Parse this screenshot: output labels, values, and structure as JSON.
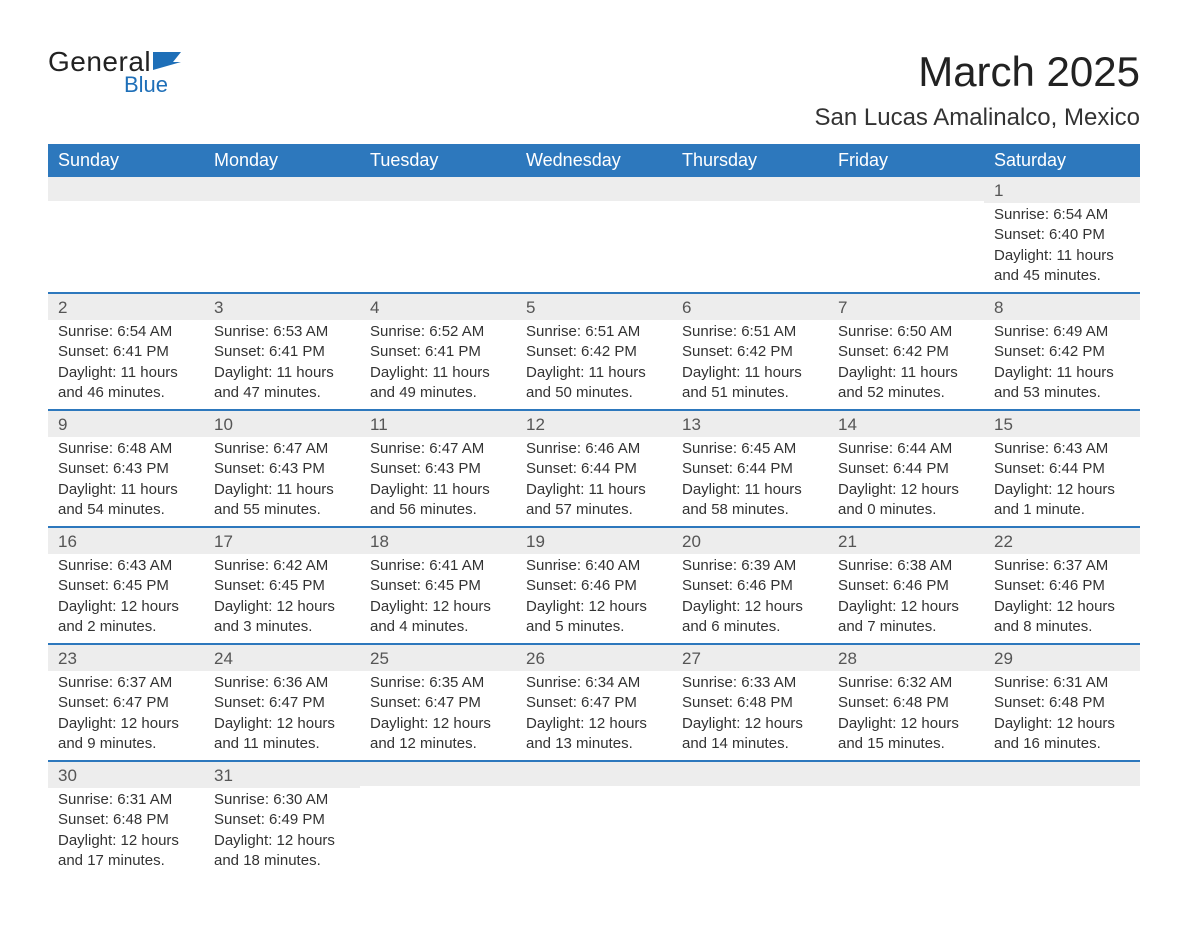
{
  "logo": {
    "general": "General",
    "blue": "Blue",
    "flag_color": "#1e6fb8"
  },
  "title": "March 2025",
  "location": "San Lucas Amalinalco, Mexico",
  "colors": {
    "header_bg": "#2d78bd",
    "header_text": "#ffffff",
    "row_divider": "#2d78bd",
    "daynum_bg": "#ededed",
    "text": "#333333"
  },
  "typography": {
    "title_fontsize": 42,
    "location_fontsize": 24,
    "dayheader_fontsize": 18,
    "daynum_fontsize": 17,
    "body_fontsize": 15
  },
  "day_headers": [
    "Sunday",
    "Monday",
    "Tuesday",
    "Wednesday",
    "Thursday",
    "Friday",
    "Saturday"
  ],
  "weeks": [
    [
      null,
      null,
      null,
      null,
      null,
      null,
      {
        "n": "1",
        "sunrise": "Sunrise: 6:54 AM",
        "sunset": "Sunset: 6:40 PM",
        "d1": "Daylight: 11 hours",
        "d2": "and 45 minutes."
      }
    ],
    [
      {
        "n": "2",
        "sunrise": "Sunrise: 6:54 AM",
        "sunset": "Sunset: 6:41 PM",
        "d1": "Daylight: 11 hours",
        "d2": "and 46 minutes."
      },
      {
        "n": "3",
        "sunrise": "Sunrise: 6:53 AM",
        "sunset": "Sunset: 6:41 PM",
        "d1": "Daylight: 11 hours",
        "d2": "and 47 minutes."
      },
      {
        "n": "4",
        "sunrise": "Sunrise: 6:52 AM",
        "sunset": "Sunset: 6:41 PM",
        "d1": "Daylight: 11 hours",
        "d2": "and 49 minutes."
      },
      {
        "n": "5",
        "sunrise": "Sunrise: 6:51 AM",
        "sunset": "Sunset: 6:42 PM",
        "d1": "Daylight: 11 hours",
        "d2": "and 50 minutes."
      },
      {
        "n": "6",
        "sunrise": "Sunrise: 6:51 AM",
        "sunset": "Sunset: 6:42 PM",
        "d1": "Daylight: 11 hours",
        "d2": "and 51 minutes."
      },
      {
        "n": "7",
        "sunrise": "Sunrise: 6:50 AM",
        "sunset": "Sunset: 6:42 PM",
        "d1": "Daylight: 11 hours",
        "d2": "and 52 minutes."
      },
      {
        "n": "8",
        "sunrise": "Sunrise: 6:49 AM",
        "sunset": "Sunset: 6:42 PM",
        "d1": "Daylight: 11 hours",
        "d2": "and 53 minutes."
      }
    ],
    [
      {
        "n": "9",
        "sunrise": "Sunrise: 6:48 AM",
        "sunset": "Sunset: 6:43 PM",
        "d1": "Daylight: 11 hours",
        "d2": "and 54 minutes."
      },
      {
        "n": "10",
        "sunrise": "Sunrise: 6:47 AM",
        "sunset": "Sunset: 6:43 PM",
        "d1": "Daylight: 11 hours",
        "d2": "and 55 minutes."
      },
      {
        "n": "11",
        "sunrise": "Sunrise: 6:47 AM",
        "sunset": "Sunset: 6:43 PM",
        "d1": "Daylight: 11 hours",
        "d2": "and 56 minutes."
      },
      {
        "n": "12",
        "sunrise": "Sunrise: 6:46 AM",
        "sunset": "Sunset: 6:44 PM",
        "d1": "Daylight: 11 hours",
        "d2": "and 57 minutes."
      },
      {
        "n": "13",
        "sunrise": "Sunrise: 6:45 AM",
        "sunset": "Sunset: 6:44 PM",
        "d1": "Daylight: 11 hours",
        "d2": "and 58 minutes."
      },
      {
        "n": "14",
        "sunrise": "Sunrise: 6:44 AM",
        "sunset": "Sunset: 6:44 PM",
        "d1": "Daylight: 12 hours",
        "d2": "and 0 minutes."
      },
      {
        "n": "15",
        "sunrise": "Sunrise: 6:43 AM",
        "sunset": "Sunset: 6:44 PM",
        "d1": "Daylight: 12 hours",
        "d2": "and 1 minute."
      }
    ],
    [
      {
        "n": "16",
        "sunrise": "Sunrise: 6:43 AM",
        "sunset": "Sunset: 6:45 PM",
        "d1": "Daylight: 12 hours",
        "d2": "and 2 minutes."
      },
      {
        "n": "17",
        "sunrise": "Sunrise: 6:42 AM",
        "sunset": "Sunset: 6:45 PM",
        "d1": "Daylight: 12 hours",
        "d2": "and 3 minutes."
      },
      {
        "n": "18",
        "sunrise": "Sunrise: 6:41 AM",
        "sunset": "Sunset: 6:45 PM",
        "d1": "Daylight: 12 hours",
        "d2": "and 4 minutes."
      },
      {
        "n": "19",
        "sunrise": "Sunrise: 6:40 AM",
        "sunset": "Sunset: 6:46 PM",
        "d1": "Daylight: 12 hours",
        "d2": "and 5 minutes."
      },
      {
        "n": "20",
        "sunrise": "Sunrise: 6:39 AM",
        "sunset": "Sunset: 6:46 PM",
        "d1": "Daylight: 12 hours",
        "d2": "and 6 minutes."
      },
      {
        "n": "21",
        "sunrise": "Sunrise: 6:38 AM",
        "sunset": "Sunset: 6:46 PM",
        "d1": "Daylight: 12 hours",
        "d2": "and 7 minutes."
      },
      {
        "n": "22",
        "sunrise": "Sunrise: 6:37 AM",
        "sunset": "Sunset: 6:46 PM",
        "d1": "Daylight: 12 hours",
        "d2": "and 8 minutes."
      }
    ],
    [
      {
        "n": "23",
        "sunrise": "Sunrise: 6:37 AM",
        "sunset": "Sunset: 6:47 PM",
        "d1": "Daylight: 12 hours",
        "d2": "and 9 minutes."
      },
      {
        "n": "24",
        "sunrise": "Sunrise: 6:36 AM",
        "sunset": "Sunset: 6:47 PM",
        "d1": "Daylight: 12 hours",
        "d2": "and 11 minutes."
      },
      {
        "n": "25",
        "sunrise": "Sunrise: 6:35 AM",
        "sunset": "Sunset: 6:47 PM",
        "d1": "Daylight: 12 hours",
        "d2": "and 12 minutes."
      },
      {
        "n": "26",
        "sunrise": "Sunrise: 6:34 AM",
        "sunset": "Sunset: 6:47 PM",
        "d1": "Daylight: 12 hours",
        "d2": "and 13 minutes."
      },
      {
        "n": "27",
        "sunrise": "Sunrise: 6:33 AM",
        "sunset": "Sunset: 6:48 PM",
        "d1": "Daylight: 12 hours",
        "d2": "and 14 minutes."
      },
      {
        "n": "28",
        "sunrise": "Sunrise: 6:32 AM",
        "sunset": "Sunset: 6:48 PM",
        "d1": "Daylight: 12 hours",
        "d2": "and 15 minutes."
      },
      {
        "n": "29",
        "sunrise": "Sunrise: 6:31 AM",
        "sunset": "Sunset: 6:48 PM",
        "d1": "Daylight: 12 hours",
        "d2": "and 16 minutes."
      }
    ],
    [
      {
        "n": "30",
        "sunrise": "Sunrise: 6:31 AM",
        "sunset": "Sunset: 6:48 PM",
        "d1": "Daylight: 12 hours",
        "d2": "and 17 minutes."
      },
      {
        "n": "31",
        "sunrise": "Sunrise: 6:30 AM",
        "sunset": "Sunset: 6:49 PM",
        "d1": "Daylight: 12 hours",
        "d2": "and 18 minutes."
      },
      null,
      null,
      null,
      null,
      null
    ]
  ]
}
